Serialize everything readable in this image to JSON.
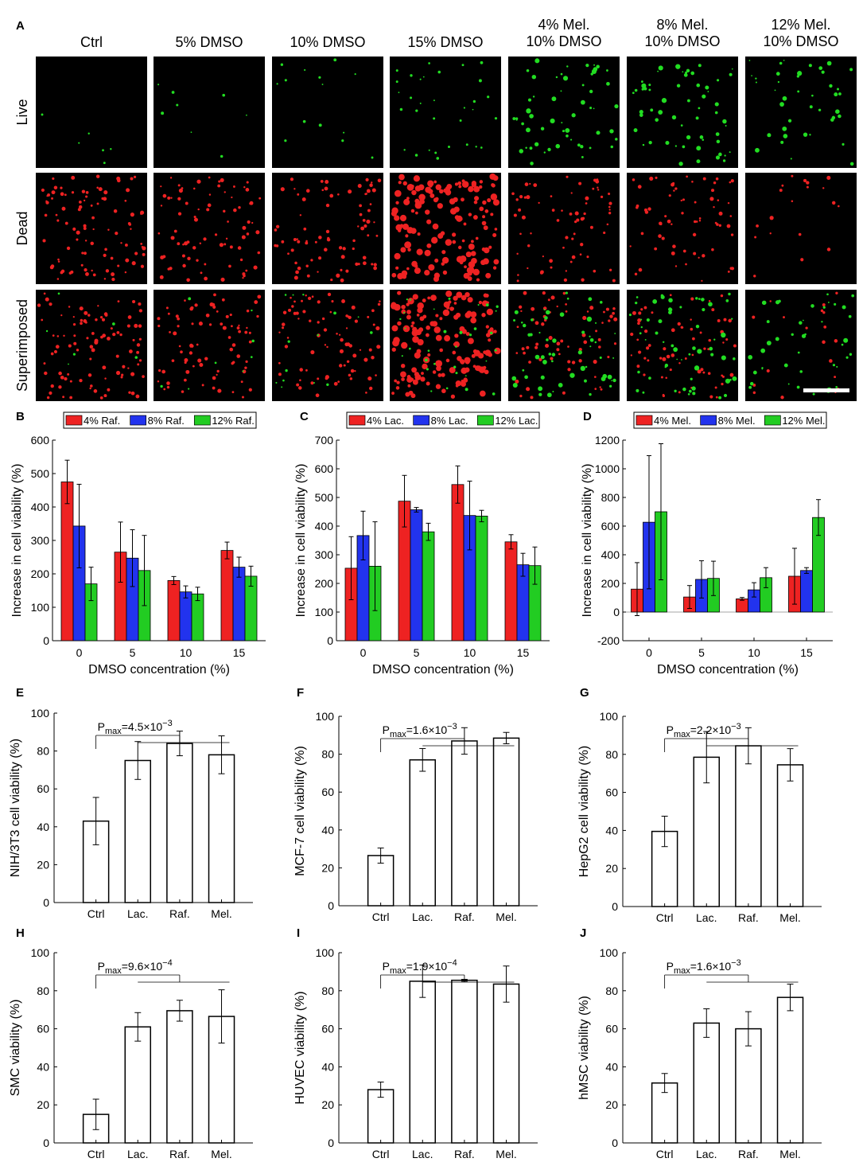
{
  "panel_a": {
    "label": "A",
    "columns": [
      "Ctrl",
      "5% DMSO",
      "10% DMSO",
      "15% DMSO",
      "4% Mel.\n10% DMSO",
      "8% Mel.\n10% DMSO",
      "12% Mel.\n10% DMSO"
    ],
    "rows": [
      "Live",
      "Dead",
      "Superimposed"
    ],
    "colors": {
      "live": "#22dd22",
      "dead": "#ee2222",
      "background": "#000000",
      "scalebar": "#ffffff"
    },
    "live_density": [
      0.08,
      0.12,
      0.2,
      0.45,
      0.8,
      0.85,
      0.6
    ],
    "dead_density": [
      1.0,
      0.85,
      0.85,
      1.6,
      0.75,
      0.7,
      0.2
    ]
  },
  "chart_data": [
    {
      "id": "B",
      "type": "bar",
      "label": "B",
      "categories": [
        "0",
        "5",
        "10",
        "15"
      ],
      "series": [
        {
          "name": "4% Raf.",
          "color": "#ee2222",
          "values": [
            475,
            265,
            180,
            270
          ],
          "errors": [
            65,
            90,
            12,
            25
          ]
        },
        {
          "name": "8% Raf.",
          "color": "#2233ee",
          "values": [
            343,
            247,
            146,
            220
          ],
          "errors": [
            125,
            85,
            18,
            30
          ]
        },
        {
          "name": "12% Raf.",
          "color": "#22cc22",
          "values": [
            170,
            210,
            140,
            193
          ],
          "errors": [
            50,
            105,
            20,
            30
          ]
        }
      ],
      "xlabel": "DMSO concentration (%)",
      "ylabel": "Increase in cell viability (%)",
      "ylim": [
        0,
        600
      ],
      "yticks": [
        0,
        100,
        200,
        300,
        400,
        500,
        600
      ],
      "legend": "top"
    },
    {
      "id": "C",
      "type": "bar",
      "label": "C",
      "categories": [
        "0",
        "5",
        "10",
        "15"
      ],
      "series": [
        {
          "name": "4% Lac.",
          "color": "#ee2222",
          "values": [
            253,
            487,
            545,
            345
          ],
          "errors": [
            110,
            90,
            65,
            25
          ]
        },
        {
          "name": "8% Lac.",
          "color": "#2233ee",
          "values": [
            367,
            457,
            437,
            265
          ],
          "errors": [
            85,
            8,
            120,
            40
          ]
        },
        {
          "name": "12% Lac.",
          "color": "#22cc22",
          "values": [
            260,
            380,
            435,
            262
          ],
          "errors": [
            155,
            30,
            20,
            65
          ]
        }
      ],
      "xlabel": "DMSO concentration (%)",
      "ylabel": "Increase in cell viability (%)",
      "ylim": [
        0,
        700
      ],
      "yticks": [
        0,
        100,
        200,
        300,
        400,
        500,
        600,
        700
      ],
      "legend": "top"
    },
    {
      "id": "D",
      "type": "bar",
      "label": "D",
      "categories": [
        "0",
        "5",
        "10",
        "15"
      ],
      "series": [
        {
          "name": "4% Mel.",
          "color": "#ee2222",
          "values": [
            160,
            105,
            92,
            250
          ],
          "errors": [
            185,
            80,
            10,
            195
          ]
        },
        {
          "name": "8% Mel.",
          "color": "#2233ee",
          "values": [
            627,
            228,
            155,
            290
          ],
          "errors": [
            465,
            130,
            50,
            20
          ]
        },
        {
          "name": "12% Mel.",
          "color": "#22cc22",
          "values": [
            700,
            235,
            240,
            660
          ],
          "errors": [
            475,
            120,
            70,
            125
          ]
        }
      ],
      "xlabel": "DMSO concentration (%)",
      "ylabel": "Increase in cell viability (%)",
      "ylim": [
        -200,
        1200
      ],
      "yticks": [
        -200,
        0,
        200,
        400,
        600,
        800,
        1000,
        1200
      ],
      "legend": "top"
    },
    {
      "id": "E",
      "type": "bar",
      "label": "E",
      "categories": [
        "Ctrl",
        "Lac.",
        "Raf.",
        "Mel."
      ],
      "values": [
        43,
        75,
        84,
        78
      ],
      "errors": [
        12.5,
        10,
        6.5,
        10
      ],
      "ylabel": "NIH/3T3 cell viability (%)",
      "ylim": [
        0,
        100
      ],
      "yticks": [
        0,
        20,
        40,
        60,
        80,
        100
      ],
      "pmax_base": "4.5×10",
      "pmax_exp": "−3"
    },
    {
      "id": "F",
      "type": "bar",
      "label": "F",
      "categories": [
        "Ctrl",
        "Lac.",
        "Raf.",
        "Mel."
      ],
      "values": [
        26.5,
        77,
        87,
        88.5
      ],
      "errors": [
        4,
        6,
        7,
        3
      ],
      "ylabel": "MCF-7 cell viability (%)",
      "ylim": [
        0,
        100
      ],
      "yticks": [
        0,
        20,
        40,
        60,
        80,
        100
      ],
      "pmax_base": "1.6×10",
      "pmax_exp": "−3"
    },
    {
      "id": "G",
      "type": "bar",
      "label": "G",
      "categories": [
        "Ctrl",
        "Lac.",
        "Raf.",
        "Mel."
      ],
      "values": [
        39.5,
        78.5,
        84.5,
        74.5
      ],
      "errors": [
        8,
        13.5,
        9.5,
        8.5
      ],
      "ylabel": "HepG2 cell viability (%)",
      "ylim": [
        0,
        100
      ],
      "yticks": [
        0,
        20,
        40,
        60,
        80,
        100
      ],
      "pmax_base": "2.2×10",
      "pmax_exp": "−3"
    },
    {
      "id": "H",
      "type": "bar",
      "label": "H",
      "categories": [
        "Ctrl",
        "Lac.",
        "Raf.",
        "Mel."
      ],
      "values": [
        15,
        61,
        69.5,
        66.5
      ],
      "errors": [
        8,
        7.5,
        5.5,
        14
      ],
      "ylabel": "SMC viability (%)",
      "ylim": [
        0,
        100
      ],
      "yticks": [
        0,
        20,
        40,
        60,
        80,
        100
      ],
      "pmax_base": "9.6×10",
      "pmax_exp": "−4"
    },
    {
      "id": "I",
      "type": "bar",
      "label": "I",
      "categories": [
        "Ctrl",
        "Lac.",
        "Raf.",
        "Mel."
      ],
      "values": [
        28,
        85,
        85.5,
        83.5
      ],
      "errors": [
        4,
        8.5,
        0.5,
        9.5
      ],
      "ylabel": "HUVEC viability (%)",
      "ylim": [
        0,
        100
      ],
      "yticks": [
        0,
        20,
        40,
        60,
        80,
        100
      ],
      "pmax_base": "1.9×10",
      "pmax_exp": "−4"
    },
    {
      "id": "J",
      "type": "bar",
      "label": "J",
      "categories": [
        "Ctrl",
        "Lac.",
        "Raf.",
        "Mel."
      ],
      "values": [
        31.5,
        63,
        60,
        76.5
      ],
      "errors": [
        5,
        7.5,
        9,
        7
      ],
      "ylabel": "hMSC viability (%)",
      "ylim": [
        0,
        100
      ],
      "yticks": [
        0,
        20,
        40,
        60,
        80,
        100
      ],
      "pmax_base": "1.6×10",
      "pmax_exp": "−3"
    }
  ]
}
